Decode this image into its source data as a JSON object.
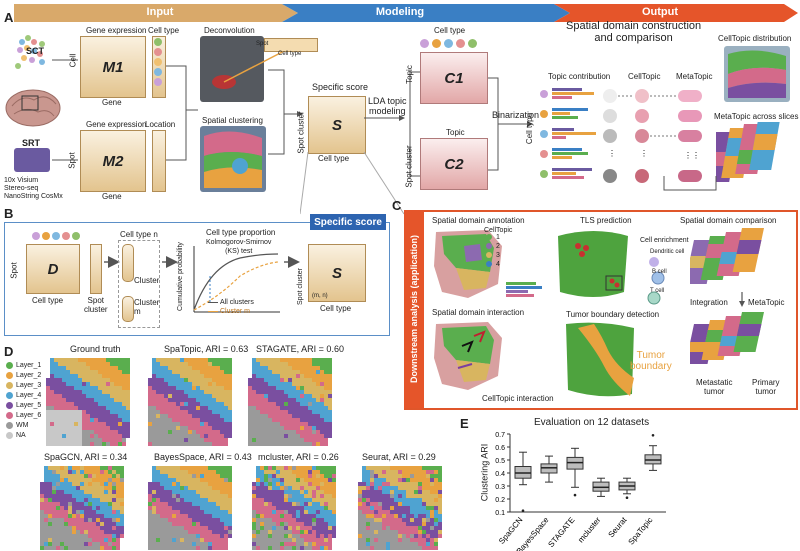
{
  "header": {
    "input": "Input",
    "modeling": "Modeling",
    "output": "Output"
  },
  "colors": {
    "input": "#d9a96a",
    "modeling": "#3a7fc4",
    "output": "#e5552a",
    "gold": "#e3c48e",
    "pink": "#e2a7a7"
  },
  "panels": {
    "a": "A",
    "b": "B",
    "c": "C",
    "d": "D",
    "e": "E"
  },
  "panel_a": {
    "sct": "SCT",
    "srt": "SRT",
    "platforms": [
      "10x Visium",
      "Stereo-seq",
      "NanoString CosMx"
    ],
    "cell": "Cell",
    "spot": "Spot",
    "gene_expression_1": "Gene expression",
    "gene_expression_2": "Gene expression",
    "m1": "M1",
    "m2": "M2",
    "gene_1": "Gene",
    "gene_2": "Gene",
    "cell_type": "Cell type",
    "location": "Location",
    "deconvolution": "Deconvolution",
    "spot_small": "Spot",
    "cell_type_small": "Cell type",
    "spatial_clustering": "Spatial clustering",
    "specific_score": "Specific score",
    "s": "S",
    "spot_cluster": "Spot cluster",
    "cell_type_axis": "Cell type",
    "lda": "LDA topic\nmodeling",
    "c1_celltype": "Cell type",
    "c1": "C1",
    "topic_1": "Topic",
    "topic_2": "Topic",
    "c2": "C2",
    "spot_cluster_2": "Spot cluster",
    "binarization": "Binarization",
    "spatial_domain": "Spatial domain construction\nand comparison",
    "topic_contribution": "Topic contribution",
    "celltopic": "CellTopic",
    "metatopic": "MetaTopic",
    "cell_type_side": "Cell type",
    "celltopic_distribution": "CellTopic distribution",
    "metatopic_slices": "MetaTopic across slices"
  },
  "panel_b": {
    "spot": "Spot",
    "d": "D",
    "cell_type": "Cell type",
    "spot_cluster": "Spot\ncluster",
    "cell_type_n": "Cell type n",
    "cluster": "Cluster",
    "cluster_m": "Cluster\nm",
    "proportion": "Cell type proportion",
    "ks": "Kolmogorov-Smirnov\n(KS) test",
    "cum_prob": "Cumulative probability",
    "all_clusters": "All clusters",
    "cluster_m_legend": "Cluster m",
    "specific_score": "Specific score",
    "s": "S",
    "spot_cluster_axis": "Spot cluster",
    "cell_type_axis": "Cell type",
    "nm": "(m, n)"
  },
  "panel_c": {
    "side": "Downstream analysis (application)",
    "annotation": "Spatial domain annotation",
    "celltopic": "CellTopic",
    "legend": [
      "1",
      "2",
      "3",
      "4"
    ],
    "tls": "TLS prediction",
    "enrichment": "Cell enrichment",
    "dendritic": "Dendritic cell",
    "bcell": "B cell",
    "tcell": "T cell",
    "comparison": "Spatial domain comparison",
    "interaction": "Spatial domain interaction",
    "celltopic_interaction": "CellTopic interaction",
    "tumor_detection": "Tumor boundary detection",
    "tumor_boundary": "Tumor\nboundary",
    "integration": "Integration",
    "metatopic": "MetaTopic",
    "metastatic": "Metastatic\ntumor",
    "primary": "Primary\ntumor"
  },
  "panel_d": {
    "legend": [
      {
        "label": "Layer_1",
        "color": "#5aae4e"
      },
      {
        "label": "Layer_2",
        "color": "#e8a240"
      },
      {
        "label": "Layer_3",
        "color": "#d8b560"
      },
      {
        "label": "Layer_4",
        "color": "#4fa3d1"
      },
      {
        "label": "Layer_5",
        "color": "#7a4fa0"
      },
      {
        "label": "Layer_6",
        "color": "#d36a8a"
      },
      {
        "label": "WM",
        "color": "#9a9a9a"
      },
      {
        "label": "NA",
        "color": "#c8c8c8"
      }
    ],
    "titles": [
      "Ground truth",
      "SpaTopic, ARI = 0.63",
      "STAGATE, ARI = 0.60",
      "SpaGCN, ARI = 0.34",
      "BayesSpace, ARI = 0.43",
      "mcluster, ARI = 0.26",
      "Seurat, ARI = 0.29"
    ]
  },
  "chart_data": {
    "type": "box",
    "title": "Evaluation on 12 datasets",
    "ylabel": "Clustering ARI",
    "categories": [
      "SpaGCN",
      "BayesSpace",
      "STAGATE",
      "mcluster",
      "Seurat",
      "SpaTopic"
    ],
    "ylim": [
      0.1,
      0.7
    ],
    "series": [
      {
        "min": 0.31,
        "q1": 0.36,
        "median": 0.4,
        "q3": 0.45,
        "max": 0.56,
        "outliers": [
          0.11
        ]
      },
      {
        "min": 0.33,
        "q1": 0.4,
        "median": 0.44,
        "q3": 0.47,
        "max": 0.53,
        "outliers": []
      },
      {
        "min": 0.29,
        "q1": 0.43,
        "median": 0.48,
        "q3": 0.52,
        "max": 0.59,
        "outliers": [
          0.23
        ]
      },
      {
        "min": 0.22,
        "q1": 0.26,
        "median": 0.29,
        "q3": 0.33,
        "max": 0.36,
        "outliers": []
      },
      {
        "min": 0.24,
        "q1": 0.27,
        "median": 0.3,
        "q3": 0.33,
        "max": 0.36,
        "outliers": [
          0.21
        ]
      },
      {
        "min": 0.42,
        "q1": 0.47,
        "median": 0.5,
        "q3": 0.54,
        "max": 0.61,
        "outliers": [
          0.69
        ]
      }
    ]
  }
}
